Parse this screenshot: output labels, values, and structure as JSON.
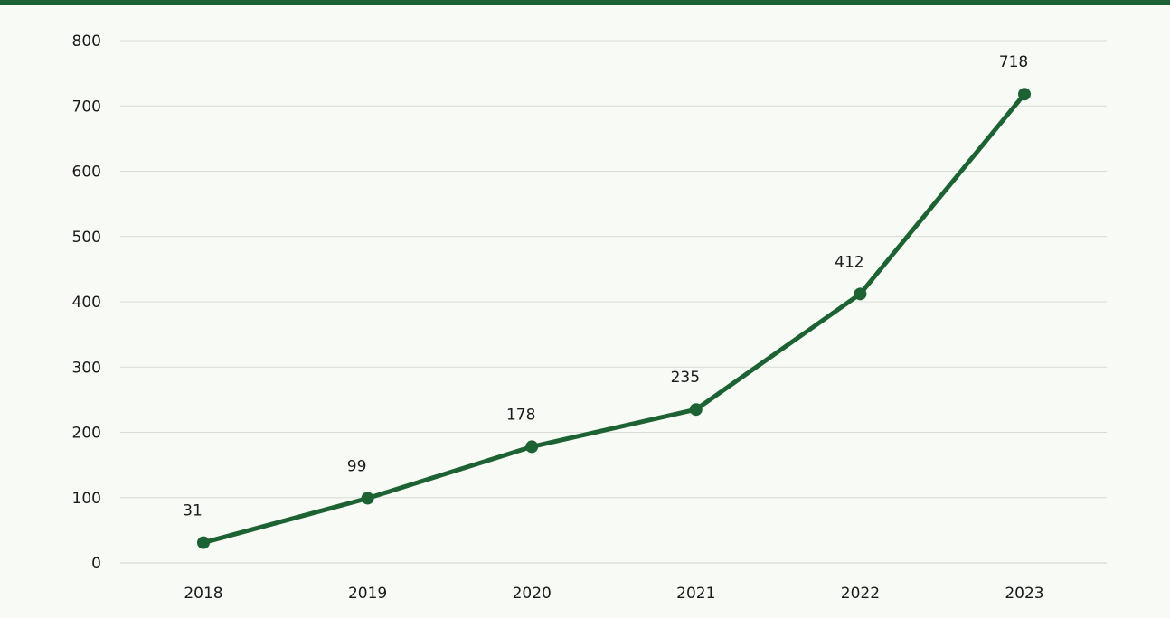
{
  "colors": {
    "accent": "#1d6232",
    "background": "#f8faf6",
    "grid": "#d9dcd6"
  },
  "chart_data": {
    "type": "line",
    "title": "",
    "xlabel": "",
    "ylabel": "",
    "categories": [
      "2018",
      "2019",
      "2020",
      "2021",
      "2022",
      "2023"
    ],
    "series": [
      {
        "values": [
          31,
          99,
          178,
          235,
          412,
          718
        ]
      }
    ],
    "data_labels": [
      "31",
      "99",
      "178",
      "235",
      "412",
      "718"
    ],
    "ylim": [
      0,
      800
    ],
    "yticks": [
      0,
      100,
      200,
      300,
      400,
      500,
      600,
      700,
      800
    ],
    "grid": true,
    "legend": "none"
  }
}
